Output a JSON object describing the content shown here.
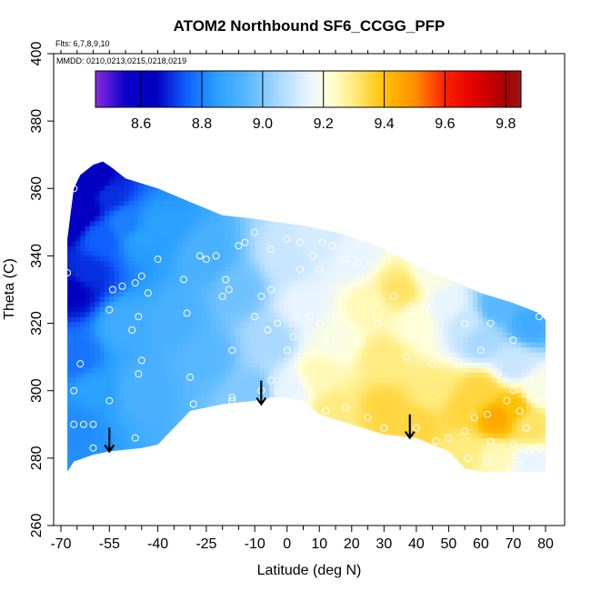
{
  "chart_data": {
    "type": "heatmap",
    "title": "ATOM2 Northbound SF6_CCGG_PFP",
    "subtitle_lines": [
      "Flts: 6,7,8,9,10",
      "MMDD: 0210,0213,0215,0218,0219"
    ],
    "xlabel": "Latitude (deg N)",
    "ylabel": "Theta (C)",
    "xlim": [
      -70,
      80
    ],
    "ylim": [
      260,
      400
    ],
    "x_ticks": [
      -70,
      -55,
      -40,
      -25,
      -10,
      0,
      10,
      20,
      30,
      40,
      50,
      60,
      70,
      80
    ],
    "x_tick_labels": [
      "-70",
      "-55",
      "-40",
      "-25",
      "-10",
      "0",
      "10",
      "20",
      "30",
      "40",
      "50",
      "60",
      "70",
      "80"
    ],
    "x_minor_ticks": [
      -65,
      -60,
      -50,
      -45,
      -35,
      -30,
      -20,
      -15,
      -5,
      5,
      15,
      25,
      35,
      45,
      55,
      65,
      75
    ],
    "y_ticks": [
      260,
      280,
      300,
      320,
      340,
      360,
      380,
      400
    ],
    "y_tick_labels": [
      "260",
      "280",
      "300",
      "320",
      "340",
      "360",
      "380",
      "400"
    ],
    "colorbar": {
      "range": [
        8.45,
        9.85
      ],
      "ticks": [
        8.6,
        8.8,
        9.0,
        9.2,
        9.4,
        9.6,
        9.8
      ],
      "tick_labels": [
        "8.6",
        "8.8",
        "9.0",
        "9.2",
        "9.4",
        "9.6",
        "9.8"
      ],
      "dividers": [
        8.6,
        8.8,
        9.0,
        9.2,
        9.4,
        9.6,
        9.8
      ]
    },
    "colormap": [
      {
        "v": 8.45,
        "c": "#8a2be2"
      },
      {
        "v": 8.55,
        "c": "#0a00c8"
      },
      {
        "v": 8.65,
        "c": "#0000c0"
      },
      {
        "v": 8.75,
        "c": "#1060ff"
      },
      {
        "v": 8.85,
        "c": "#2aa0ff"
      },
      {
        "v": 8.95,
        "c": "#58b8ff"
      },
      {
        "v": 9.05,
        "c": "#a8d8ff"
      },
      {
        "v": 9.15,
        "c": "#e8f4ff"
      },
      {
        "v": 9.22,
        "c": "#ffffd8"
      },
      {
        "v": 9.3,
        "c": "#ffec80"
      },
      {
        "v": 9.4,
        "c": "#ffc000"
      },
      {
        "v": 9.5,
        "c": "#ff9000"
      },
      {
        "v": 9.6,
        "c": "#ff2000"
      },
      {
        "v": 9.7,
        "c": "#e00000"
      },
      {
        "v": 9.8,
        "c": "#a80000"
      },
      {
        "v": 9.85,
        "c": "#9a1818"
      }
    ],
    "field_anchors": [
      {
        "lat": -68,
        "theta": 350,
        "v": 8.62
      },
      {
        "lat": -64,
        "theta": 355,
        "v": 8.6
      },
      {
        "lat": -60,
        "theta": 362,
        "v": 8.62
      },
      {
        "lat": -55,
        "theta": 358,
        "v": 8.7
      },
      {
        "lat": -66,
        "theta": 330,
        "v": 8.65
      },
      {
        "lat": -62,
        "theta": 335,
        "v": 8.7
      },
      {
        "lat": -58,
        "theta": 345,
        "v": 8.75
      },
      {
        "lat": -66,
        "theta": 310,
        "v": 8.78
      },
      {
        "lat": -66,
        "theta": 290,
        "v": 8.82
      },
      {
        "lat": -60,
        "theta": 300,
        "v": 8.85
      },
      {
        "lat": -50,
        "theta": 350,
        "v": 8.8
      },
      {
        "lat": -45,
        "theta": 345,
        "v": 8.85
      },
      {
        "lat": -40,
        "theta": 350,
        "v": 8.85
      },
      {
        "lat": -50,
        "theta": 320,
        "v": 8.9
      },
      {
        "lat": -45,
        "theta": 300,
        "v": 8.92
      },
      {
        "lat": -35,
        "theta": 320,
        "v": 8.92
      },
      {
        "lat": -25,
        "theta": 340,
        "v": 8.92
      },
      {
        "lat": -25,
        "theta": 310,
        "v": 8.95
      },
      {
        "lat": -15,
        "theta": 330,
        "v": 8.98
      },
      {
        "lat": -10,
        "theta": 300,
        "v": 9.0
      },
      {
        "lat": -5,
        "theta": 315,
        "v": 9.05
      },
      {
        "lat": 0,
        "theta": 340,
        "v": 9.1
      },
      {
        "lat": 5,
        "theta": 325,
        "v": 9.15
      },
      {
        "lat": 10,
        "theta": 345,
        "v": 9.12
      },
      {
        "lat": 20,
        "theta": 340,
        "v": 9.15
      },
      {
        "lat": 0,
        "theta": 300,
        "v": 9.15
      },
      {
        "lat": 10,
        "theta": 305,
        "v": 9.25
      },
      {
        "lat": 15,
        "theta": 295,
        "v": 9.3
      },
      {
        "lat": 15,
        "theta": 315,
        "v": 9.2
      },
      {
        "lat": 25,
        "theta": 325,
        "v": 9.25
      },
      {
        "lat": 30,
        "theta": 310,
        "v": 9.3
      },
      {
        "lat": 35,
        "theta": 330,
        "v": 9.32
      },
      {
        "lat": 40,
        "theta": 320,
        "v": 9.22
      },
      {
        "lat": 45,
        "theta": 335,
        "v": 9.2
      },
      {
        "lat": 50,
        "theta": 325,
        "v": 9.15
      },
      {
        "lat": 55,
        "theta": 320,
        "v": 9.1
      },
      {
        "lat": 65,
        "theta": 325,
        "v": 8.95
      },
      {
        "lat": 75,
        "theta": 320,
        "v": 8.9
      },
      {
        "lat": 60,
        "theta": 315,
        "v": 9.05
      },
      {
        "lat": 70,
        "theta": 308,
        "v": 9.1
      },
      {
        "lat": 30,
        "theta": 295,
        "v": 9.35
      },
      {
        "lat": 40,
        "theta": 290,
        "v": 9.35
      },
      {
        "lat": 45,
        "theta": 300,
        "v": 9.3
      },
      {
        "lat": 55,
        "theta": 295,
        "v": 9.35
      },
      {
        "lat": 60,
        "theta": 300,
        "v": 9.35
      },
      {
        "lat": 65,
        "theta": 292,
        "v": 9.45
      },
      {
        "lat": 70,
        "theta": 295,
        "v": 9.4
      },
      {
        "lat": 75,
        "theta": 290,
        "v": 9.32
      },
      {
        "lat": 55,
        "theta": 282,
        "v": 9.3
      },
      {
        "lat": 65,
        "theta": 280,
        "v": 9.25
      },
      {
        "lat": 75,
        "theta": 278,
        "v": 9.15
      },
      {
        "lat": 78,
        "theta": 300,
        "v": 9.2
      }
    ],
    "domain_outline": [
      {
        "lat": -68,
        "theta": 276
      },
      {
        "lat": -68,
        "theta": 345
      },
      {
        "lat": -66,
        "theta": 360
      },
      {
        "lat": -64,
        "theta": 364
      },
      {
        "lat": -60,
        "theta": 367
      },
      {
        "lat": -57,
        "theta": 368
      },
      {
        "lat": -54,
        "theta": 366
      },
      {
        "lat": -50,
        "theta": 363
      },
      {
        "lat": -40,
        "theta": 360
      },
      {
        "lat": -30,
        "theta": 356
      },
      {
        "lat": -20,
        "theta": 352
      },
      {
        "lat": -10,
        "theta": 351
      },
      {
        "lat": -3,
        "theta": 350
      },
      {
        "lat": 5,
        "theta": 349
      },
      {
        "lat": 15,
        "theta": 347
      },
      {
        "lat": 25,
        "theta": 344
      },
      {
        "lat": 30,
        "theta": 342
      },
      {
        "lat": 40,
        "theta": 337
      },
      {
        "lat": 50,
        "theta": 333
      },
      {
        "lat": 60,
        "theta": 329
      },
      {
        "lat": 70,
        "theta": 326
      },
      {
        "lat": 78,
        "theta": 323
      },
      {
        "lat": 80,
        "theta": 321
      },
      {
        "lat": 80,
        "theta": 276
      },
      {
        "lat": 70,
        "theta": 276
      },
      {
        "lat": 60,
        "theta": 276
      },
      {
        "lat": 55,
        "theta": 277
      },
      {
        "lat": 50,
        "theta": 282
      },
      {
        "lat": 40,
        "theta": 286
      },
      {
        "lat": 30,
        "theta": 287
      },
      {
        "lat": 20,
        "theta": 290
      },
      {
        "lat": 10,
        "theta": 293
      },
      {
        "lat": 5,
        "theta": 297
      },
      {
        "lat": 0,
        "theta": 298
      },
      {
        "lat": -5,
        "theta": 298
      },
      {
        "lat": -10,
        "theta": 297
      },
      {
        "lat": -20,
        "theta": 296
      },
      {
        "lat": -30,
        "theta": 294
      },
      {
        "lat": -40,
        "theta": 284
      },
      {
        "lat": -45,
        "theta": 283
      },
      {
        "lat": -55,
        "theta": 282
      },
      {
        "lat": -60,
        "theta": 281
      },
      {
        "lat": -66,
        "theta": 279
      },
      {
        "lat": -68,
        "theta": 276
      }
    ],
    "sample_points": [
      {
        "lat": -68,
        "theta": 335
      },
      {
        "lat": -66,
        "theta": 360
      },
      {
        "lat": -66,
        "theta": 300
      },
      {
        "lat": -66,
        "theta": 290
      },
      {
        "lat": -63,
        "theta": 290
      },
      {
        "lat": -60,
        "theta": 290
      },
      {
        "lat": -60,
        "theta": 283
      },
      {
        "lat": -64,
        "theta": 308
      },
      {
        "lat": -55,
        "theta": 324
      },
      {
        "lat": -54,
        "theta": 330
      },
      {
        "lat": -51,
        "theta": 331
      },
      {
        "lat": -47,
        "theta": 332
      },
      {
        "lat": -45,
        "theta": 334
      },
      {
        "lat": -43,
        "theta": 329
      },
      {
        "lat": -40,
        "theta": 339
      },
      {
        "lat": -46,
        "theta": 322
      },
      {
        "lat": -48,
        "theta": 318
      },
      {
        "lat": -45,
        "theta": 309
      },
      {
        "lat": -46,
        "theta": 305
      },
      {
        "lat": -55,
        "theta": 297
      },
      {
        "lat": -47,
        "theta": 286
      },
      {
        "lat": -32,
        "theta": 333
      },
      {
        "lat": -31,
        "theta": 323
      },
      {
        "lat": -30,
        "theta": 304
      },
      {
        "lat": -29,
        "theta": 296
      },
      {
        "lat": -27,
        "theta": 340
      },
      {
        "lat": -25,
        "theta": 339
      },
      {
        "lat": -22,
        "theta": 340
      },
      {
        "lat": -19,
        "theta": 333
      },
      {
        "lat": -18,
        "theta": 330
      },
      {
        "lat": -20,
        "theta": 328
      },
      {
        "lat": -17,
        "theta": 312
      },
      {
        "lat": -17,
        "theta": 298
      },
      {
        "lat": -17,
        "theta": 297
      },
      {
        "lat": -15,
        "theta": 343
      },
      {
        "lat": -13,
        "theta": 344
      },
      {
        "lat": -10,
        "theta": 347
      },
      {
        "lat": -5,
        "theta": 342
      },
      {
        "lat": -8,
        "theta": 328
      },
      {
        "lat": -5,
        "theta": 330
      },
      {
        "lat": -10,
        "theta": 322
      },
      {
        "lat": -6,
        "theta": 318
      },
      {
        "lat": -3,
        "theta": 320
      },
      {
        "lat": -5,
        "theta": 303
      },
      {
        "lat": -8,
        "theta": 300
      },
      {
        "lat": 0,
        "theta": 345
      },
      {
        "lat": 4,
        "theta": 344
      },
      {
        "lat": 8,
        "theta": 340
      },
      {
        "lat": 4,
        "theta": 336
      },
      {
        "lat": 10,
        "theta": 336
      },
      {
        "lat": 3,
        "theta": 322
      },
      {
        "lat": 7,
        "theta": 322
      },
      {
        "lat": 10,
        "theta": 320
      },
      {
        "lat": 12,
        "theta": 315
      },
      {
        "lat": 2,
        "theta": 316
      },
      {
        "lat": 0,
        "theta": 312
      },
      {
        "lat": 5,
        "theta": 303
      },
      {
        "lat": 3,
        "theta": 298
      },
      {
        "lat": 11,
        "theta": 344
      },
      {
        "lat": 14,
        "theta": 343
      },
      {
        "lat": 18,
        "theta": 339
      },
      {
        "lat": 22,
        "theta": 338
      },
      {
        "lat": 23,
        "theta": 345
      },
      {
        "lat": 26,
        "theta": 347
      },
      {
        "lat": 19,
        "theta": 330
      },
      {
        "lat": 15,
        "theta": 322
      },
      {
        "lat": 23,
        "theta": 314
      },
      {
        "lat": 28,
        "theta": 320
      },
      {
        "lat": 33,
        "theta": 328
      },
      {
        "lat": 38,
        "theta": 325
      },
      {
        "lat": 43,
        "theta": 325
      },
      {
        "lat": 37,
        "theta": 310
      },
      {
        "lat": 45,
        "theta": 308
      },
      {
        "lat": 55,
        "theta": 320
      },
      {
        "lat": 63,
        "theta": 320
      },
      {
        "lat": 70,
        "theta": 315
      },
      {
        "lat": 78,
        "theta": 322
      },
      {
        "lat": 60,
        "theta": 312
      },
      {
        "lat": 65,
        "theta": 305
      },
      {
        "lat": 70,
        "theta": 300
      },
      {
        "lat": 75,
        "theta": 303
      },
      {
        "lat": 68,
        "theta": 297
      },
      {
        "lat": 72,
        "theta": 294
      },
      {
        "lat": 74,
        "theta": 289
      },
      {
        "lat": 62,
        "theta": 293
      },
      {
        "lat": 55,
        "theta": 288
      },
      {
        "lat": 58,
        "theta": 292
      },
      {
        "lat": 50,
        "theta": 286
      },
      {
        "lat": 46,
        "theta": 285
      },
      {
        "lat": 40,
        "theta": 289
      },
      {
        "lat": 30,
        "theta": 289
      },
      {
        "lat": 25,
        "theta": 292
      },
      {
        "lat": 18,
        "theta": 295
      },
      {
        "lat": 12,
        "theta": 294
      },
      {
        "lat": 63,
        "theta": 285
      },
      {
        "lat": 70,
        "theta": 284
      },
      {
        "lat": 75,
        "theta": 282
      },
      {
        "lat": 78,
        "theta": 283
      },
      {
        "lat": 72,
        "theta": 278
      },
      {
        "lat": 62,
        "theta": 279
      },
      {
        "lat": 56,
        "theta": 280
      }
    ],
    "arrows": [
      {
        "lat": -55,
        "theta_top": 289,
        "theta_tip": 282
      },
      {
        "lat": -8,
        "theta_top": 303,
        "theta_tip": 296
      },
      {
        "lat": 38,
        "theta_top": 293,
        "theta_tip": 286
      }
    ]
  }
}
